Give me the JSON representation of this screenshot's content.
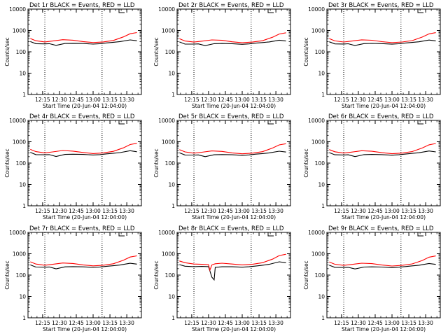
{
  "figure": {
    "background": "#ffffff",
    "colors": {
      "events": "#000000",
      "lld": "#ff0000",
      "axes": "#000000",
      "markers": "#000000"
    }
  },
  "chart_data": [
    {
      "type": "line",
      "title": "Det 1r BLACK = Events, RED = LLD",
      "xlabel": "Start Time (20-Jun-04 12:04:00)",
      "ylabel": "Counts/sec",
      "x_ticks": [
        "12:15",
        "12:30",
        "12:45",
        "13:00",
        "13:15",
        "13:30"
      ],
      "y_ticks": [
        "1",
        "10",
        "100",
        "1000",
        "10000"
      ],
      "yscale": "log",
      "ylim": [
        1,
        10000
      ],
      "xlim_minutes": [
        12.033,
        13.717
      ],
      "markers": [
        12.283,
        13.133
      ],
      "series": [
        {
          "name": "BLACK",
          "color": "#000000",
          "x": [
            12.067,
            12.15,
            12.283,
            12.35,
            12.45,
            12.583,
            12.7,
            12.85,
            13.0,
            13.1,
            13.2,
            13.3,
            13.4,
            13.55,
            13.65
          ],
          "y": [
            300,
            240,
            235,
            240,
            200,
            245,
            250,
            245,
            230,
            240,
            260,
            280,
            300,
            360,
            330
          ]
        },
        {
          "name": "RED",
          "color": "#ff0000",
          "x": [
            12.067,
            12.15,
            12.283,
            12.4,
            12.55,
            12.7,
            12.85,
            13.0,
            13.15,
            13.3,
            13.45,
            13.55,
            13.65
          ],
          "y": [
            420,
            330,
            290,
            320,
            370,
            350,
            300,
            270,
            290,
            340,
            500,
            700,
            800
          ]
        }
      ]
    },
    {
      "type": "line",
      "title": "Det 2r BLACK = Events, RED = LLD",
      "xlabel": "Start Time (20-Jun-04 12:04:00)",
      "ylabel": "Counts/sec",
      "x_ticks": [
        "12:15",
        "12:30",
        "12:45",
        "13:00",
        "13:15",
        "13:30"
      ],
      "y_ticks": [
        "1",
        "10",
        "100",
        "1000",
        "10000"
      ],
      "yscale": "log",
      "ylim": [
        1,
        10000
      ],
      "xlim_minutes": [
        12.033,
        13.717
      ],
      "markers": [
        12.283,
        13.133
      ],
      "series": [
        {
          "name": "BLACK",
          "color": "#000000",
          "x": [
            12.067,
            12.15,
            12.283,
            12.35,
            12.45,
            12.583,
            12.7,
            12.85,
            13.0,
            13.1,
            13.2,
            13.3,
            13.4,
            13.55,
            13.65
          ],
          "y": [
            290,
            230,
            230,
            235,
            195,
            240,
            245,
            240,
            225,
            235,
            255,
            270,
            290,
            350,
            320
          ]
        },
        {
          "name": "RED",
          "color": "#ff0000",
          "x": [
            12.067,
            12.15,
            12.283,
            12.4,
            12.55,
            12.7,
            12.85,
            13.0,
            13.15,
            13.3,
            13.45,
            13.55,
            13.65
          ],
          "y": [
            410,
            320,
            285,
            315,
            360,
            345,
            295,
            265,
            285,
            330,
            480,
            680,
            780
          ]
        }
      ]
    },
    {
      "type": "line",
      "title": "Det 3r BLACK = Events, RED = LLD",
      "xlabel": "Start Time (20-Jun-04 12:04:00)",
      "ylabel": "Counts/sec",
      "x_ticks": [
        "12:15",
        "12:30",
        "12:45",
        "13:00",
        "13:15",
        "13:30"
      ],
      "y_ticks": [
        "1",
        "10",
        "100",
        "1000",
        "10000"
      ],
      "yscale": "log",
      "ylim": [
        1,
        10000
      ],
      "xlim_minutes": [
        12.033,
        13.717
      ],
      "markers": [
        12.283,
        13.133
      ],
      "series": [
        {
          "name": "BLACK",
          "color": "#000000",
          "x": [
            12.067,
            12.15,
            12.283,
            12.35,
            12.45,
            12.583,
            12.7,
            12.85,
            13.0,
            13.1,
            13.2,
            13.3,
            13.4,
            13.55,
            13.65
          ],
          "y": [
            295,
            235,
            232,
            238,
            198,
            242,
            248,
            242,
            228,
            238,
            258,
            275,
            295,
            355,
            325
          ]
        },
        {
          "name": "RED",
          "color": "#ff0000",
          "x": [
            12.067,
            12.15,
            12.283,
            12.4,
            12.55,
            12.7,
            12.85,
            13.0,
            13.15,
            13.3,
            13.45,
            13.55,
            13.65
          ],
          "y": [
            415,
            325,
            288,
            318,
            365,
            348,
            298,
            268,
            288,
            335,
            490,
            690,
            790
          ]
        }
      ]
    },
    {
      "type": "line",
      "title": "Det 4r BLACK = Events, RED = LLD",
      "xlabel": "Start Time (20-Jun-04 12:04:00)",
      "ylabel": "Counts/sec",
      "x_ticks": [
        "12:15",
        "12:30",
        "12:45",
        "13:00",
        "13:15",
        "13:30"
      ],
      "y_ticks": [
        "1",
        "10",
        "100",
        "1000",
        "10000"
      ],
      "yscale": "log",
      "ylim": [
        1,
        10000
      ],
      "xlim_minutes": [
        12.033,
        13.717
      ],
      "markers": [
        12.283,
        13.133
      ],
      "series": [
        {
          "name": "BLACK",
          "color": "#000000",
          "x": [
            12.067,
            12.15,
            12.283,
            12.35,
            12.45,
            12.583,
            12.7,
            12.85,
            13.0,
            13.1,
            13.2,
            13.3,
            13.4,
            13.55,
            13.65
          ],
          "y": [
            320,
            250,
            245,
            250,
            205,
            255,
            260,
            255,
            240,
            250,
            270,
            290,
            310,
            380,
            340
          ]
        },
        {
          "name": "RED",
          "color": "#ff0000",
          "x": [
            12.067,
            12.15,
            12.283,
            12.4,
            12.55,
            12.7,
            12.85,
            13.0,
            13.15,
            13.3,
            13.45,
            13.55,
            13.65
          ],
          "y": [
            440,
            345,
            300,
            335,
            390,
            365,
            315,
            280,
            300,
            355,
            520,
            740,
            850
          ]
        }
      ]
    },
    {
      "type": "line",
      "title": "Det 5r BLACK = Events, RED = LLD",
      "xlabel": "Start Time (20-Jun-04 12:04:00)",
      "ylabel": "Counts/sec",
      "x_ticks": [
        "12:15",
        "12:30",
        "12:45",
        "13:00",
        "13:15",
        "13:30"
      ],
      "y_ticks": [
        "1",
        "10",
        "100",
        "1000",
        "10000"
      ],
      "yscale": "log",
      "ylim": [
        1,
        10000
      ],
      "xlim_minutes": [
        12.033,
        13.717
      ],
      "markers": [
        12.283,
        13.133
      ],
      "series": [
        {
          "name": "BLACK",
          "color": "#000000",
          "x": [
            12.067,
            12.15,
            12.283,
            12.35,
            12.45,
            12.583,
            12.7,
            12.85,
            13.0,
            13.1,
            13.2,
            13.3,
            13.4,
            13.55,
            13.65
          ],
          "y": [
            305,
            240,
            238,
            242,
            200,
            246,
            252,
            246,
            232,
            242,
            262,
            280,
            300,
            362,
            330
          ]
        },
        {
          "name": "RED",
          "color": "#ff0000",
          "x": [
            12.067,
            12.15,
            12.283,
            12.4,
            12.55,
            12.7,
            12.85,
            13.0,
            13.15,
            13.3,
            13.45,
            13.55,
            13.65
          ],
          "y": [
            425,
            335,
            292,
            322,
            372,
            352,
            302,
            272,
            292,
            342,
            505,
            710,
            810
          ]
        }
      ]
    },
    {
      "type": "line",
      "title": "Det 6r BLACK = Events, RED = LLD",
      "xlabel": "Start Time (20-Jun-04 12:04:00)",
      "ylabel": "Counts/sec",
      "x_ticks": [
        "12:15",
        "12:30",
        "12:45",
        "13:00",
        "13:15",
        "13:30"
      ],
      "y_ticks": [
        "1",
        "10",
        "100",
        "1000",
        "10000"
      ],
      "yscale": "log",
      "ylim": [
        1,
        10000
      ],
      "xlim_minutes": [
        12.033,
        13.717
      ],
      "markers": [
        12.283,
        13.133
      ],
      "series": [
        {
          "name": "BLACK",
          "color": "#000000",
          "x": [
            12.067,
            12.15,
            12.283,
            12.35,
            12.45,
            12.583,
            12.7,
            12.85,
            13.0,
            13.1,
            13.2,
            13.3,
            13.4,
            13.55,
            13.65
          ],
          "y": [
            310,
            245,
            240,
            245,
            202,
            250,
            255,
            250,
            235,
            245,
            265,
            285,
            305,
            370,
            335
          ]
        },
        {
          "name": "RED",
          "color": "#ff0000",
          "x": [
            12.067,
            12.15,
            12.283,
            12.4,
            12.55,
            12.7,
            12.85,
            13.0,
            13.15,
            13.3,
            13.45,
            13.55,
            13.65
          ],
          "y": [
            430,
            340,
            295,
            328,
            380,
            358,
            308,
            275,
            295,
            348,
            510,
            720,
            830
          ]
        }
      ]
    },
    {
      "type": "line",
      "title": "Det 7r BLACK = Events, RED = LLD",
      "xlabel": "Start Time (20-Jun-04 12:04:00)",
      "ylabel": "Counts/sec",
      "x_ticks": [
        "12:15",
        "12:30",
        "12:45",
        "13:00",
        "13:15",
        "13:30"
      ],
      "y_ticks": [
        "1",
        "10",
        "100",
        "1000",
        "10000"
      ],
      "yscale": "log",
      "ylim": [
        1,
        10000
      ],
      "xlim_minutes": [
        12.033,
        13.717
      ],
      "markers": [
        12.283,
        13.133
      ],
      "series": [
        {
          "name": "BLACK",
          "color": "#000000",
          "x": [
            12.067,
            12.15,
            12.283,
            12.35,
            12.45,
            12.583,
            12.7,
            12.85,
            13.0,
            13.1,
            13.2,
            13.3,
            13.4,
            13.55,
            13.65
          ],
          "y": [
            300,
            238,
            235,
            240,
            198,
            244,
            250,
            244,
            230,
            240,
            258,
            276,
            296,
            358,
            326
          ]
        },
        {
          "name": "RED",
          "color": "#ff0000",
          "x": [
            12.067,
            12.15,
            12.283,
            12.4,
            12.55,
            12.7,
            12.85,
            13.0,
            13.15,
            13.3,
            13.45,
            13.55,
            13.65
          ],
          "y": [
            420,
            330,
            290,
            320,
            368,
            350,
            300,
            270,
            290,
            340,
            495,
            700,
            800
          ]
        }
      ]
    },
    {
      "type": "line",
      "title": "Det 8r BLACK = Events, RED = LLD",
      "xlabel": "Start Time (20-Jun-04 12:04:00)",
      "ylabel": "Counts/sec",
      "x_ticks": [
        "12:15",
        "12:30",
        "12:45",
        "13:00",
        "13:15",
        "13:30"
      ],
      "y_ticks": [
        "1",
        "10",
        "100",
        "1000",
        "10000"
      ],
      "yscale": "log",
      "ylim": [
        1,
        10000
      ],
      "xlim_minutes": [
        12.033,
        13.717
      ],
      "markers": [
        12.283,
        13.133
      ],
      "series": [
        {
          "name": "BLACK",
          "color": "#000000",
          "x": [
            12.067,
            12.15,
            12.283,
            12.4,
            12.5,
            12.55,
            12.583,
            12.6,
            12.7,
            12.85,
            13.0,
            13.1,
            13.2,
            13.3,
            13.4,
            13.55,
            13.65
          ],
          "y": [
            310,
            260,
            250,
            255,
            250,
            80,
            60,
            230,
            245,
            245,
            235,
            245,
            265,
            290,
            320,
            420,
            380
          ]
        },
        {
          "name": "RED",
          "color": "#ff0000",
          "x": [
            12.067,
            12.15,
            12.283,
            12.4,
            12.5,
            12.52,
            12.55,
            12.6,
            12.7,
            12.85,
            13.0,
            13.15,
            13.3,
            13.45,
            13.55,
            13.65
          ],
          "y": [
            460,
            380,
            330,
            320,
            310,
            170,
            300,
            340,
            360,
            330,
            300,
            320,
            380,
            560,
            820,
            950
          ]
        }
      ]
    },
    {
      "type": "line",
      "title": "Det 9r BLACK = Events, RED = LLD",
      "xlabel": "Start Time (20-Jun-04 12:04:00)",
      "ylabel": "Counts/sec",
      "x_ticks": [
        "12:15",
        "12:30",
        "12:45",
        "13:00",
        "13:15",
        "13:30"
      ],
      "y_ticks": [
        "1",
        "10",
        "100",
        "1000",
        "10000"
      ],
      "yscale": "log",
      "ylim": [
        1,
        10000
      ],
      "xlim_minutes": [
        12.033,
        13.717
      ],
      "markers": [
        12.283,
        13.133
      ],
      "series": [
        {
          "name": "BLACK",
          "color": "#000000",
          "x": [
            12.067,
            12.15,
            12.283,
            12.35,
            12.45,
            12.583,
            12.7,
            12.85,
            13.0,
            13.1,
            13.2,
            13.3,
            13.4,
            13.55,
            13.65
          ],
          "y": [
            290,
            232,
            228,
            232,
            194,
            238,
            244,
            238,
            224,
            234,
            252,
            270,
            290,
            350,
            318
          ]
        },
        {
          "name": "RED",
          "color": "#ff0000",
          "x": [
            12.067,
            12.15,
            12.283,
            12.4,
            12.55,
            12.7,
            12.85,
            13.0,
            13.15,
            13.3,
            13.45,
            13.55,
            13.65
          ],
          "y": [
            410,
            322,
            285,
            315,
            362,
            345,
            296,
            266,
            286,
            334,
            485,
            690,
            790
          ]
        }
      ]
    }
  ]
}
